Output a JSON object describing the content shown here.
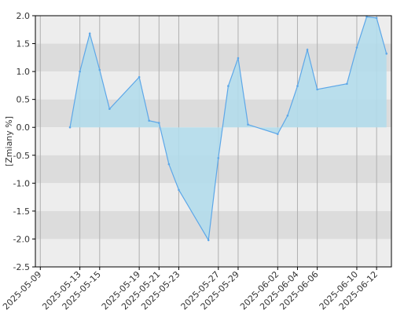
{
  "chart_data": {
    "type": "area",
    "title": "",
    "xlabel": "",
    "ylabel": "[Zmiany %]",
    "ylim": [
      -2.5,
      2.0
    ],
    "yticks": [
      "2.0",
      "1.5",
      "1.0",
      "0.5",
      "0.0",
      "-0.5",
      "-1.0",
      "-1.5",
      "-2.0",
      "-2.5"
    ],
    "xticks": [
      "2025-05-09",
      "2025-05-13",
      "2025-05-15",
      "2025-05-19",
      "2025-05-21",
      "2025-05-23",
      "2025-05-27",
      "2025-05-29",
      "2025-06-02",
      "2025-06-04",
      "2025-06-06",
      "2025-06-10",
      "2025-06-12"
    ],
    "grid": true,
    "x": [
      "2025-05-12",
      "2025-05-13",
      "2025-05-14",
      "2025-05-15",
      "2025-05-16",
      "2025-05-19",
      "2025-05-20",
      "2025-05-21",
      "2025-05-22",
      "2025-05-23",
      "2025-05-26",
      "2025-05-27",
      "2025-05-28",
      "2025-05-29",
      "2025-05-30",
      "2025-06-02",
      "2025-06-03",
      "2025-06-04",
      "2025-06-05",
      "2025-06-06",
      "2025-06-09",
      "2025-06-10",
      "2025-06-11",
      "2025-06-12",
      "2025-06-13"
    ],
    "values": [
      0.0,
      1.0,
      1.68,
      1.03,
      0.33,
      0.9,
      0.12,
      0.08,
      -0.66,
      -1.12,
      -2.02,
      -0.55,
      0.74,
      1.24,
      0.05,
      -0.12,
      0.21,
      0.74,
      1.39,
      0.68,
      0.78,
      1.43,
      1.98,
      1.96,
      1.32
    ],
    "fill_color": "#b3dceb",
    "line_color": "#5da7e8",
    "band_colors": [
      "#ededed",
      "#dcdcdc"
    ],
    "vgrid_color": "#b0b0b0"
  }
}
